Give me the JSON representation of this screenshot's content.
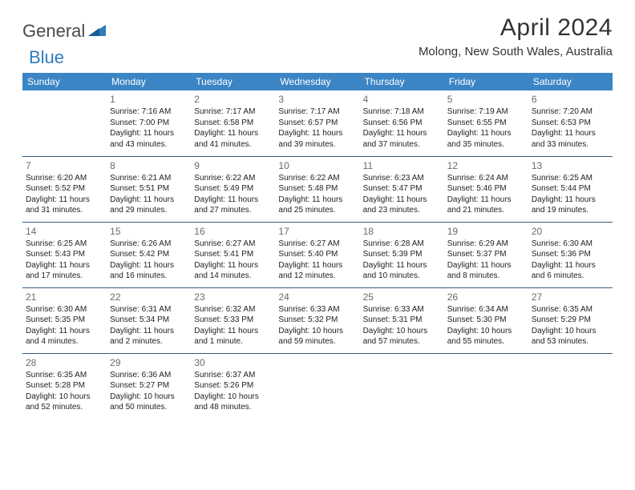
{
  "brand": {
    "name_gray": "General",
    "name_blue": "Blue"
  },
  "title": "April 2024",
  "location": "Molong, New South Wales, Australia",
  "colors": {
    "header_bg": "#3b85c5",
    "header_text": "#ffffff",
    "row_border": "#325d84",
    "daynum": "#6a6a6a",
    "body_text": "#222222",
    "logo_gray": "#4a4a4a",
    "logo_blue": "#2f7bbf",
    "page_bg": "#ffffff"
  },
  "weekdays": [
    "Sunday",
    "Monday",
    "Tuesday",
    "Wednesday",
    "Thursday",
    "Friday",
    "Saturday"
  ],
  "weeks": [
    [
      null,
      {
        "d": "1",
        "sunrise": "7:16 AM",
        "sunset": "7:00 PM",
        "daylight": "11 hours and 43 minutes."
      },
      {
        "d": "2",
        "sunrise": "7:17 AM",
        "sunset": "6:58 PM",
        "daylight": "11 hours and 41 minutes."
      },
      {
        "d": "3",
        "sunrise": "7:17 AM",
        "sunset": "6:57 PM",
        "daylight": "11 hours and 39 minutes."
      },
      {
        "d": "4",
        "sunrise": "7:18 AM",
        "sunset": "6:56 PM",
        "daylight": "11 hours and 37 minutes."
      },
      {
        "d": "5",
        "sunrise": "7:19 AM",
        "sunset": "6:55 PM",
        "daylight": "11 hours and 35 minutes."
      },
      {
        "d": "6",
        "sunrise": "7:20 AM",
        "sunset": "6:53 PM",
        "daylight": "11 hours and 33 minutes."
      }
    ],
    [
      {
        "d": "7",
        "sunrise": "6:20 AM",
        "sunset": "5:52 PM",
        "daylight": "11 hours and 31 minutes."
      },
      {
        "d": "8",
        "sunrise": "6:21 AM",
        "sunset": "5:51 PM",
        "daylight": "11 hours and 29 minutes."
      },
      {
        "d": "9",
        "sunrise": "6:22 AM",
        "sunset": "5:49 PM",
        "daylight": "11 hours and 27 minutes."
      },
      {
        "d": "10",
        "sunrise": "6:22 AM",
        "sunset": "5:48 PM",
        "daylight": "11 hours and 25 minutes."
      },
      {
        "d": "11",
        "sunrise": "6:23 AM",
        "sunset": "5:47 PM",
        "daylight": "11 hours and 23 minutes."
      },
      {
        "d": "12",
        "sunrise": "6:24 AM",
        "sunset": "5:46 PM",
        "daylight": "11 hours and 21 minutes."
      },
      {
        "d": "13",
        "sunrise": "6:25 AM",
        "sunset": "5:44 PM",
        "daylight": "11 hours and 19 minutes."
      }
    ],
    [
      {
        "d": "14",
        "sunrise": "6:25 AM",
        "sunset": "5:43 PM",
        "daylight": "11 hours and 17 minutes."
      },
      {
        "d": "15",
        "sunrise": "6:26 AM",
        "sunset": "5:42 PM",
        "daylight": "11 hours and 16 minutes."
      },
      {
        "d": "16",
        "sunrise": "6:27 AM",
        "sunset": "5:41 PM",
        "daylight": "11 hours and 14 minutes."
      },
      {
        "d": "17",
        "sunrise": "6:27 AM",
        "sunset": "5:40 PM",
        "daylight": "11 hours and 12 minutes."
      },
      {
        "d": "18",
        "sunrise": "6:28 AM",
        "sunset": "5:39 PM",
        "daylight": "11 hours and 10 minutes."
      },
      {
        "d": "19",
        "sunrise": "6:29 AM",
        "sunset": "5:37 PM",
        "daylight": "11 hours and 8 minutes."
      },
      {
        "d": "20",
        "sunrise": "6:30 AM",
        "sunset": "5:36 PM",
        "daylight": "11 hours and 6 minutes."
      }
    ],
    [
      {
        "d": "21",
        "sunrise": "6:30 AM",
        "sunset": "5:35 PM",
        "daylight": "11 hours and 4 minutes."
      },
      {
        "d": "22",
        "sunrise": "6:31 AM",
        "sunset": "5:34 PM",
        "daylight": "11 hours and 2 minutes."
      },
      {
        "d": "23",
        "sunrise": "6:32 AM",
        "sunset": "5:33 PM",
        "daylight": "11 hours and 1 minute."
      },
      {
        "d": "24",
        "sunrise": "6:33 AM",
        "sunset": "5:32 PM",
        "daylight": "10 hours and 59 minutes."
      },
      {
        "d": "25",
        "sunrise": "6:33 AM",
        "sunset": "5:31 PM",
        "daylight": "10 hours and 57 minutes."
      },
      {
        "d": "26",
        "sunrise": "6:34 AM",
        "sunset": "5:30 PM",
        "daylight": "10 hours and 55 minutes."
      },
      {
        "d": "27",
        "sunrise": "6:35 AM",
        "sunset": "5:29 PM",
        "daylight": "10 hours and 53 minutes."
      }
    ],
    [
      {
        "d": "28",
        "sunrise": "6:35 AM",
        "sunset": "5:28 PM",
        "daylight": "10 hours and 52 minutes."
      },
      {
        "d": "29",
        "sunrise": "6:36 AM",
        "sunset": "5:27 PM",
        "daylight": "10 hours and 50 minutes."
      },
      {
        "d": "30",
        "sunrise": "6:37 AM",
        "sunset": "5:26 PM",
        "daylight": "10 hours and 48 minutes."
      },
      null,
      null,
      null,
      null
    ]
  ],
  "labels": {
    "sunrise": "Sunrise:",
    "sunset": "Sunset:",
    "daylight": "Daylight:"
  }
}
